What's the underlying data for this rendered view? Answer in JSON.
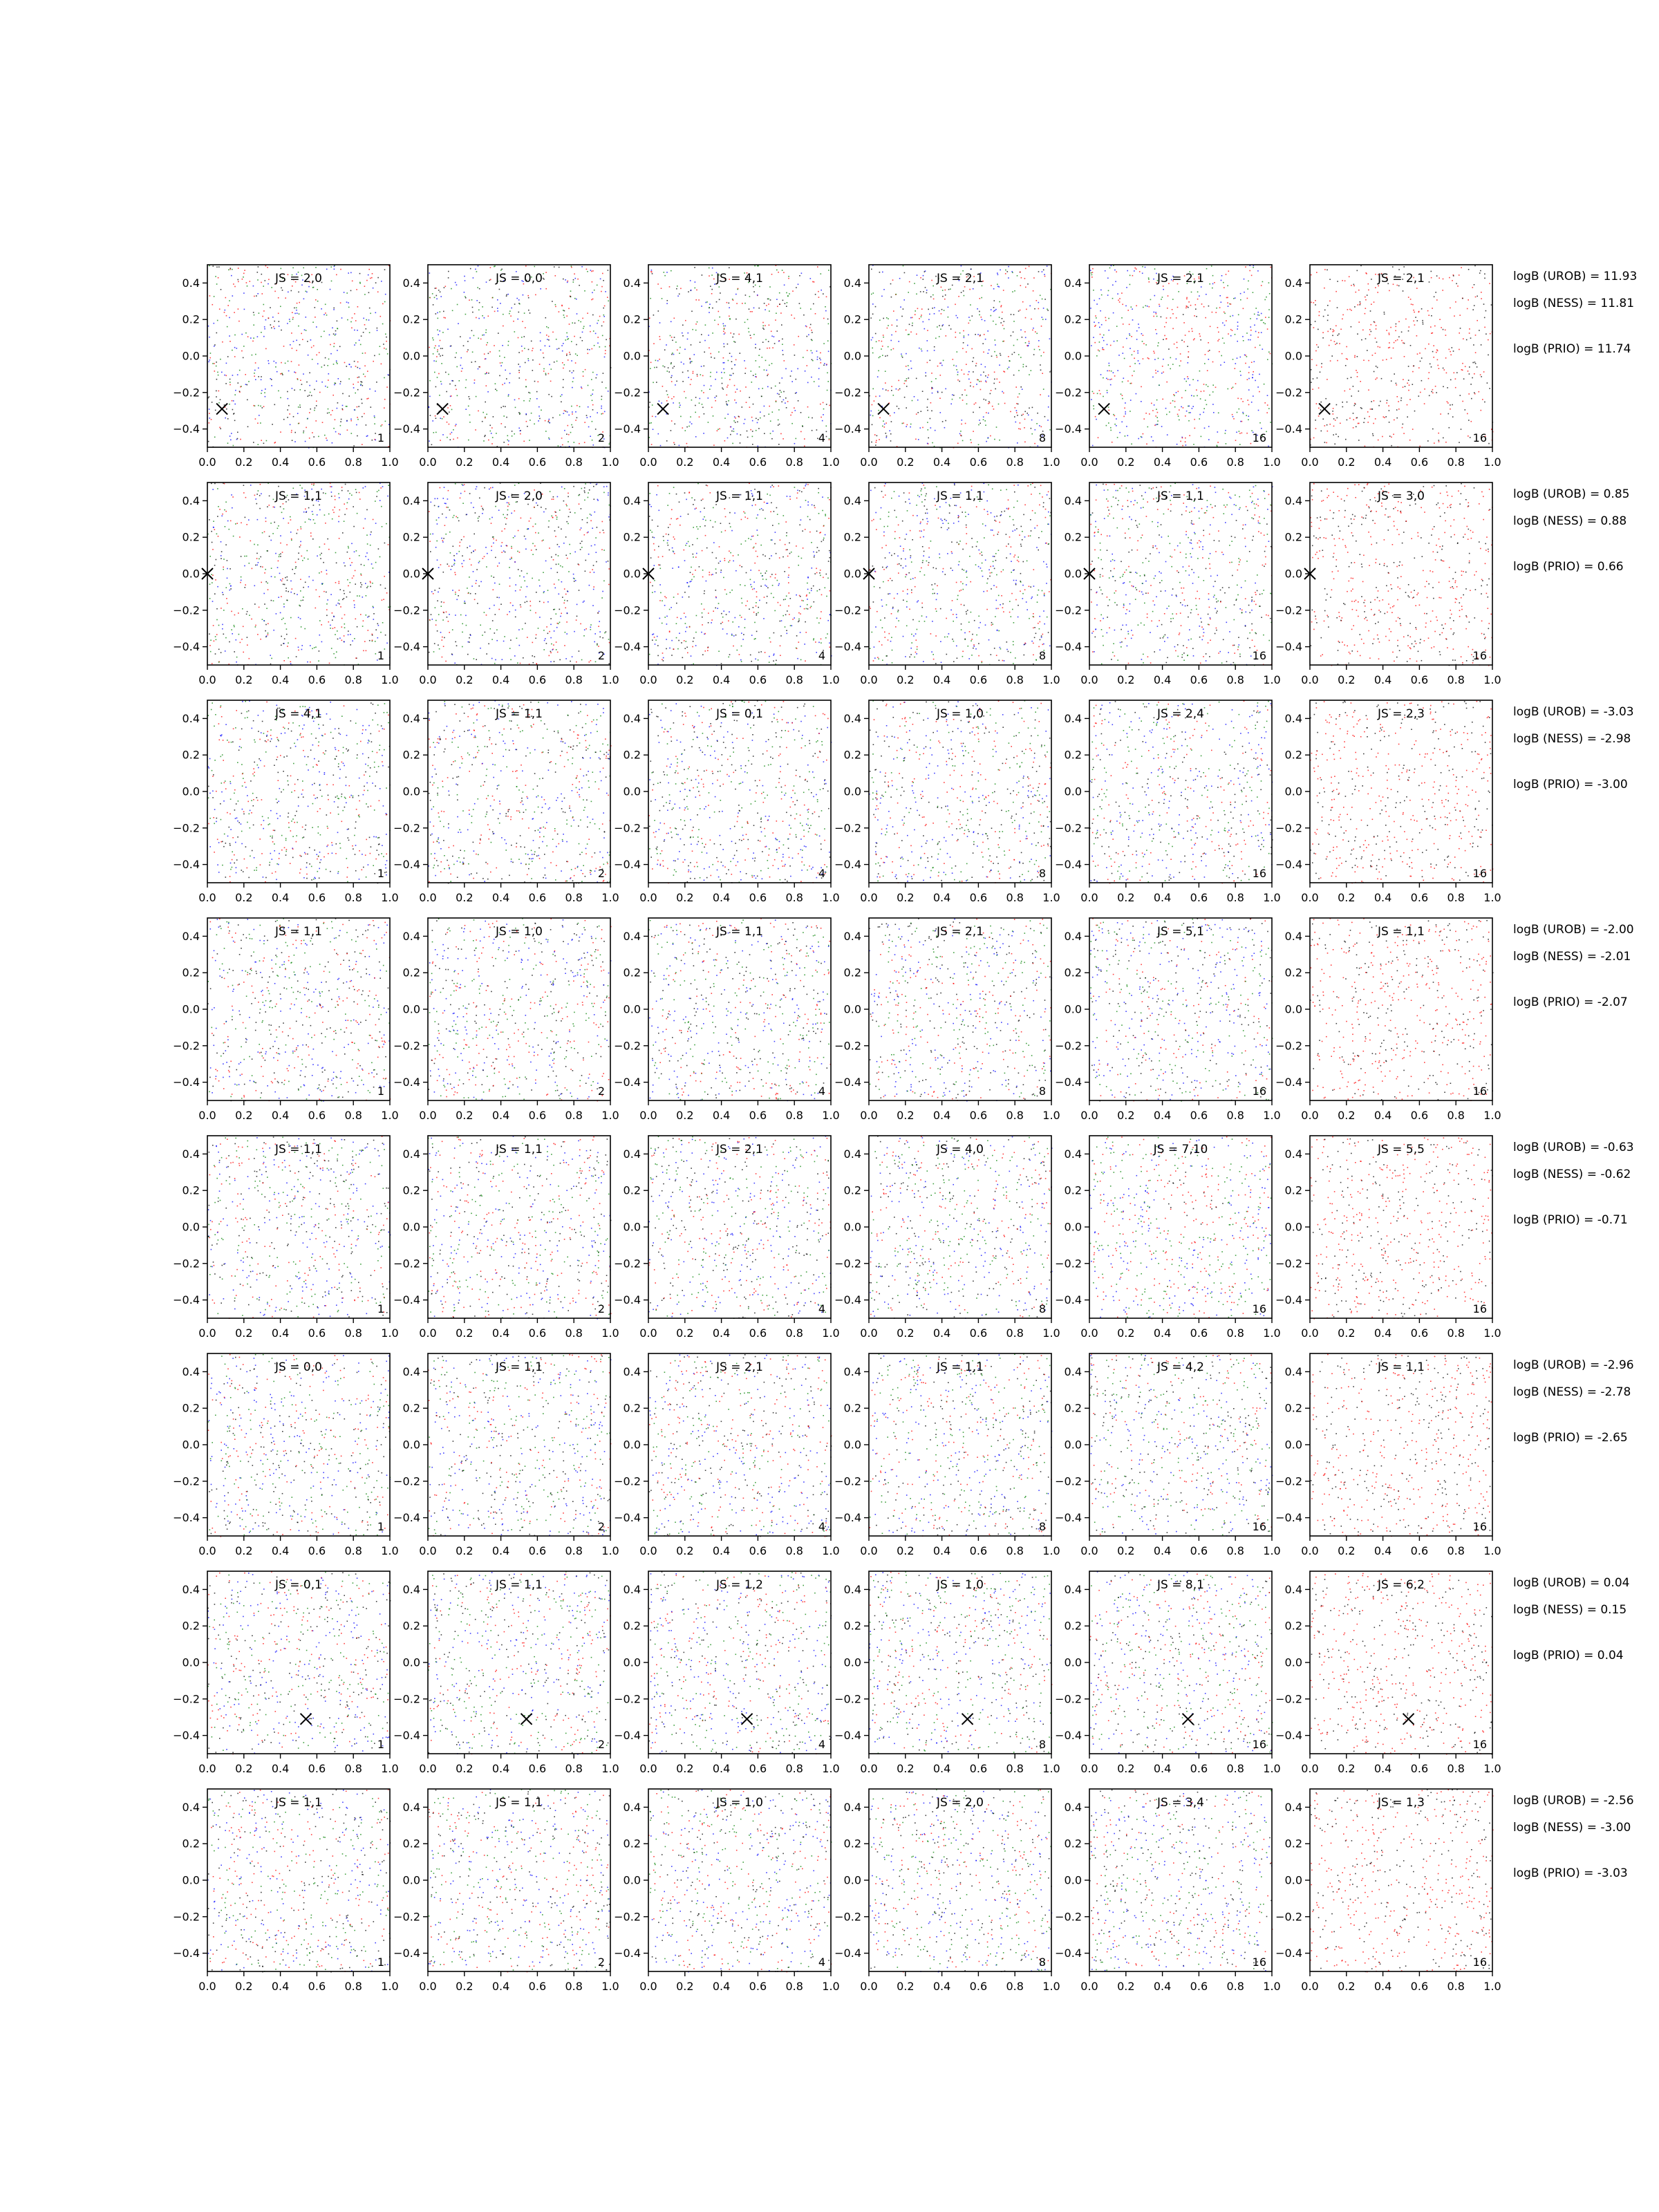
{
  "figure": {
    "columns": [
      {
        "corner_label": "1"
      },
      {
        "corner_label": "2"
      },
      {
        "corner_label": "4"
      },
      {
        "corner_label": "8"
      },
      {
        "corner_label": "16"
      },
      {
        "corner_label": "16"
      }
    ]
  },
  "colors": {
    "red": "#ff0000",
    "blue": "#0000ff",
    "green": "#008000",
    "black": "#000000"
  },
  "chart_data": {
    "type": "scatter",
    "grid": "off",
    "xlim": [
      0.0,
      1.0
    ],
    "ylim": [
      -0.5,
      0.5
    ],
    "x_ticks": [
      "0.0",
      "0.2",
      "0.4",
      "0.6",
      "0.8",
      "1.0"
    ],
    "y_ticks": [
      "−0.4",
      "−0.2",
      "0.0",
      "0.2",
      "0.4"
    ],
    "rows": [
      {
        "js": [
          "JS = 2,0",
          "JS = 0,0",
          "JS = 4,1",
          "JS = 2,1",
          "JS = 2,1",
          "JS = 2,1"
        ],
        "marker": [
          0.08,
          -0.29
        ],
        "logb": [
          "logB (UROB) = 11.93",
          "logB (NESS) = 11.81",
          "logB (PRIO) = 11.74"
        ]
      },
      {
        "js": [
          "JS = 1,1",
          "JS = 2,0",
          "JS = 1,1",
          "JS = 1,1",
          "JS = 1,1",
          "JS = 3,0"
        ],
        "marker": [
          0.0,
          0.0
        ],
        "logb": [
          "logB (UROB) = 0.85",
          "logB (NESS) = 0.88",
          "logB (PRIO) = 0.66"
        ]
      },
      {
        "js": [
          "JS = 4,1",
          "JS = 1,1",
          "JS = 0,1",
          "JS = 1,0",
          "JS = 2,4",
          "JS = 2,3"
        ],
        "marker": null,
        "logb": [
          "logB (UROB) = -3.03",
          "logB (NESS) = -2.98",
          "logB (PRIO) = -3.00"
        ]
      },
      {
        "js": [
          "JS = 1,1",
          "JS = 1,0",
          "JS = 1,1",
          "JS = 2,1",
          "JS = 5,1",
          "JS = 1,1"
        ],
        "marker": null,
        "logb": [
          "logB (UROB) = -2.00",
          "logB (NESS) = -2.01",
          "logB (PRIO) = -2.07"
        ]
      },
      {
        "js": [
          "JS = 1,1",
          "JS = 1,1",
          "JS = 2,1",
          "JS = 4,0",
          "JS = 7,10",
          "JS = 5,5"
        ],
        "marker": null,
        "logb": [
          "logB (UROB) = -0.63",
          "logB (NESS) = -0.62",
          "logB (PRIO) = -0.71"
        ]
      },
      {
        "js": [
          "JS = 0,0",
          "JS = 1,1",
          "JS = 2,1",
          "JS = 1,1",
          "JS = 4,2",
          "JS = 1,1"
        ],
        "marker": null,
        "logb": [
          "logB (UROB) = -2.96",
          "logB (NESS) = -2.78",
          "logB (PRIO) = -2.65"
        ]
      },
      {
        "js": [
          "JS = 0,1",
          "JS = 1,1",
          "JS = 1,2",
          "JS = 1,0",
          "JS = 8,1",
          "JS = 6,2"
        ],
        "marker": [
          0.54,
          -0.31
        ],
        "logb": [
          "logB (UROB) = 0.04",
          "logB (NESS) = 0.15",
          "logB (PRIO) = 0.04"
        ]
      },
      {
        "js": [
          "JS = 1,1",
          "JS = 1,1",
          "JS = 1,0",
          "JS = 2,0",
          "JS = 3,4",
          "JS = 1,3"
        ],
        "marker": null,
        "logb": [
          "logB (UROB) = -2.56",
          "logB (NESS) = -3.00",
          "logB (PRIO) = -3.03"
        ]
      }
    ]
  }
}
